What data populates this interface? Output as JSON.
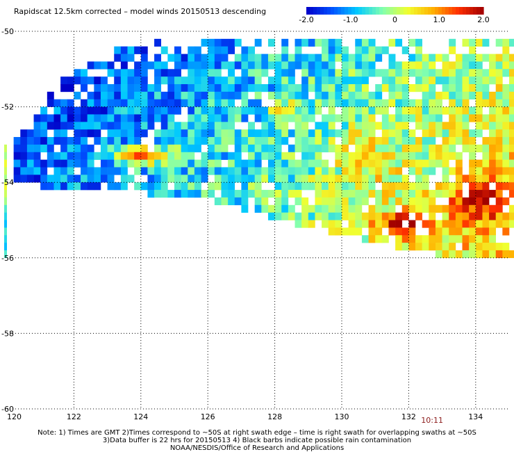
{
  "chart_data": {
    "type": "heatmap",
    "title": "Rapidscat 12.5km corrected – model winds 20150513 descending",
    "x_axis": {
      "range": [
        120,
        135
      ],
      "ticks": [
        "120",
        "122",
        "124",
        "126",
        "128",
        "130",
        "132",
        "134"
      ],
      "tick_values": [
        120,
        122,
        124,
        126,
        128,
        130,
        132,
        134
      ]
    },
    "y_axis": {
      "range": [
        -60,
        -50
      ],
      "ticks": [
        "-50",
        "-52",
        "-54",
        "-56",
        "-58",
        "-60"
      ],
      "tick_values": [
        -50,
        -52,
        -54,
        -56,
        -58,
        -60
      ]
    },
    "grid": "dotted",
    "colorbar": {
      "range": [
        -2.0,
        2.0
      ],
      "ticks": [
        "-2.0",
        "-1.0",
        "0",
        "1.0",
        "2.0"
      ],
      "tick_values": [
        -2.0,
        -1.0,
        0,
        1.0,
        2.0
      ],
      "colors": [
        "#0000c8",
        "#0050ff",
        "#00c8ff",
        "#80ffb0",
        "#f0ff30",
        "#ffb000",
        "#ff3000",
        "#a00000"
      ]
    },
    "time_label": {
      "text": "10:11",
      "lon": 132.7,
      "color": "#8b1a1a"
    },
    "notes": [
      "Note: 1) Times are GMT 2)Times correspond to ~50S at right swath edge – time is right swath for overlapping swaths at ~50S",
      "3)Data buffer is 22 hrs for 20150513 4) Black barbs indicate possible rain contamination",
      "NOAA/NESDIS/Office of Research and Applications"
    ]
  }
}
